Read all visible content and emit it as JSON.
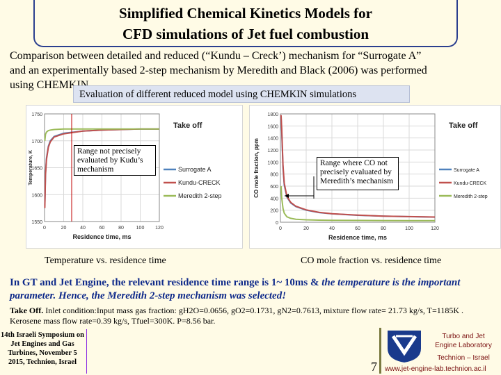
{
  "title": {
    "line1": "Simplified Chemical Kinetics Models for",
    "line2": "CFD simulations of Jet fuel combustion"
  },
  "intro": {
    "line1": "Comparison between detailed  and reduced (“Kundu – Creck’) mechanism for “Surrogate A”",
    "line2": "and an experimentally based 2-step mechanism by Meredith and Black (2006) was performed",
    "line3": "using CHEMKIN"
  },
  "banner": "Evaluation of different reduced model using CHEMKIN simulations",
  "chart_data": [
    {
      "type": "line",
      "title": "Take off",
      "xlabel": "Residence time, ms",
      "ylabel": "Temperature, K",
      "xlim": [
        0,
        120
      ],
      "ylim": [
        1550,
        1750
      ],
      "x_ticks": [
        "0",
        "20",
        "40",
        "60",
        "80",
        "100",
        "120"
      ],
      "y_ticks": [
        "1750",
        "1700",
        "1650",
        "1600",
        "1550"
      ],
      "legend_position": "right",
      "series": [
        {
          "name": "Surrogate A",
          "color": "#4f81bd",
          "x": [
            0.3,
            1,
            2,
            4,
            6,
            10,
            20,
            40,
            60,
            80,
            100,
            120
          ],
          "values": [
            1580,
            1640,
            1668,
            1690,
            1700,
            1708,
            1714,
            1718,
            1720,
            1721,
            1722,
            1722
          ]
        },
        {
          "name": "Kundu-CRECK",
          "color": "#c0504d",
          "x": [
            0.3,
            1,
            2,
            4,
            6,
            10,
            20,
            40,
            60,
            80,
            100,
            120
          ],
          "values": [
            1575,
            1636,
            1665,
            1688,
            1698,
            1707,
            1713,
            1718,
            1720,
            1721,
            1722,
            1722
          ]
        },
        {
          "name": "Meredith 2-step",
          "color": "#9bbb59",
          "x": [
            0.3,
            1,
            2,
            4,
            6,
            10,
            20,
            40,
            60,
            80,
            100,
            120
          ],
          "values": [
            1700,
            1712,
            1716,
            1719,
            1720,
            1721,
            1722,
            1722,
            1722,
            1722,
            1722,
            1722
          ]
        }
      ],
      "annotation": "Range not precisely evaluated by Kudu’s mechanism"
    },
    {
      "type": "line",
      "title": "Take off",
      "xlabel": "Residence time, ms",
      "ylabel": "CO mole fraction, ppm",
      "xlim": [
        0,
        120
      ],
      "ylim": [
        0,
        1800
      ],
      "x_ticks": [
        "0",
        "20",
        "40",
        "60",
        "80",
        "100",
        "120"
      ],
      "y_ticks": [
        "1800",
        "1600",
        "1400",
        "1200",
        "1000",
        "800",
        "600",
        "400",
        "200",
        "0"
      ],
      "legend_position": "right",
      "series": [
        {
          "name": "Surrogate A",
          "color": "#4f81bd",
          "x": [
            0.5,
            1,
            2,
            3,
            5,
            8,
            12,
            20,
            30,
            40,
            60,
            80,
            100,
            120
          ],
          "values": [
            1750,
            1500,
            900,
            620,
            420,
            320,
            260,
            200,
            160,
            140,
            115,
            100,
            92,
            85
          ]
        },
        {
          "name": "Kundu-CRECK",
          "color": "#c0504d",
          "x": [
            0.5,
            1,
            2,
            3,
            5,
            8,
            12,
            20,
            30,
            40,
            60,
            80,
            100,
            120
          ],
          "values": [
            1780,
            1550,
            950,
            650,
            430,
            330,
            265,
            205,
            165,
            142,
            118,
            102,
            93,
            86
          ]
        },
        {
          "name": "Meredith 2-step",
          "color": "#9bbb59",
          "x": [
            0.5,
            1,
            2,
            3,
            5,
            8,
            12,
            20,
            30,
            40,
            60,
            80,
            100,
            120
          ],
          "values": [
            600,
            400,
            230,
            150,
            90,
            65,
            50,
            40,
            35,
            32,
            30,
            28,
            27,
            26
          ]
        }
      ],
      "annotation": "Range where CO not precisely evaluated by Meredith’s mechanism"
    }
  ],
  "captions": {
    "left": "Temperature vs. residence time",
    "right": "CO mole fraction vs. residence time"
  },
  "highlight": {
    "part1": "In GT and Jet Engine, the relevant residence time range is 1~ 10ms & ",
    "part2": "the temperature is the important parameter. Hence, the Meredith 2-step mechanism was selected!"
  },
  "takeoff": {
    "label": "Take Off.",
    "text": " Inlet condition:Input mass gas fraction: gH2O=0.0656, gO2=0.1731, gN2=0.7613, mixture flow rate= 21.73 kg/s, T=1185K . Kerosene mass flow rate=0.39 kg/s, Tfuel=300K. P=8.56 bar."
  },
  "footer": {
    "symposium": "14th Israeli Symposium on Jet Engines and Gas Turbines, November 5 2015, Technion, Israel",
    "slide_number": "7",
    "lab_line1": "Turbo and Jet",
    "lab_line2": "Engine Laboratory",
    "lab_line3": "Technion – Israel",
    "url": "www.jet-engine-lab.technion.ac.il"
  }
}
